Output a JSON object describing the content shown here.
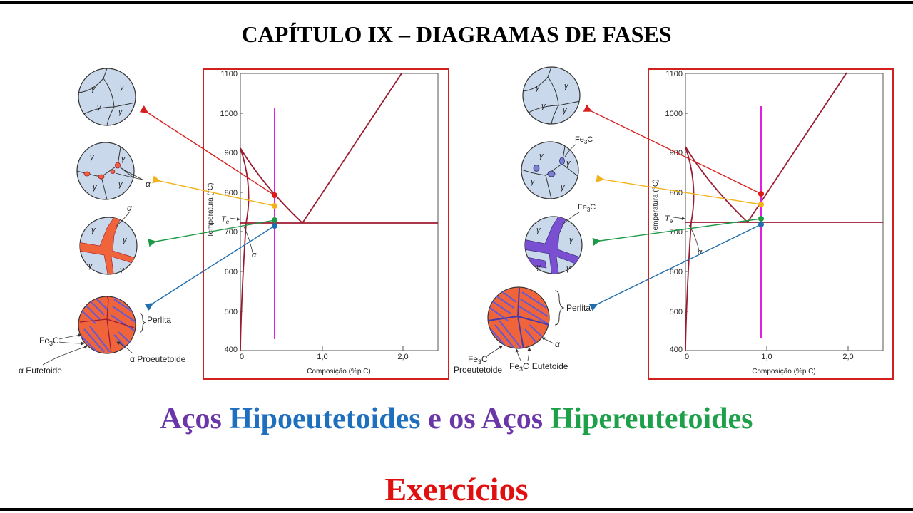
{
  "heading": "CAPÍTULO IX –  DIAGRAMAS DE FASES",
  "subtitle": {
    "parts": [
      {
        "text": "Aços ",
        "color": "#6a36a8"
      },
      {
        "text": "Hipoeutetoides",
        "color": "#1f6fbf"
      },
      {
        "text": " e os Aços ",
        "color": "#6a36a8"
      },
      {
        "text": "Hipereutetoides",
        "color": "#1ea04a"
      }
    ]
  },
  "exercise_title": "Exercícios",
  "colors": {
    "frame": "#d02020",
    "curve": "#9b1b30",
    "composition_line": "#e020e0",
    "red_arrow": "#d81e1e",
    "yellow_arrow": "#f2b21a",
    "green_arrow": "#1e9a46",
    "blue_arrow": "#1f6fb0",
    "grain_fill": "#c9d8ea",
    "ferrite": "#f0643c",
    "cementite": "#6a5acd"
  },
  "axes": {
    "y_ticks": [
      "1100",
      "1000",
      "900",
      "800",
      "700",
      "600",
      "500",
      "400"
    ],
    "x_ticks": [
      "0",
      "1,0",
      "2,0"
    ],
    "ylabel": "Temperatura (°C)",
    "xlabel": "Composição (%p C)",
    "te_label": "T",
    "te_sub": "e",
    "alpha_label": "α"
  },
  "left_panel": {
    "labels": {
      "gamma": "γ",
      "alpha": "α",
      "perlita": "Perlita",
      "fe3c_main": "Fe",
      "fe3c_sub": "3",
      "fe3c_end": "C",
      "eutetoide": "α Eutetoide",
      "proeutetoide": "α Proeutetoide"
    }
  },
  "right_panel": {
    "labels": {
      "gamma": "γ",
      "alpha": "α",
      "fe3c_main": "Fe",
      "fe3c_sub": "3",
      "fe3c_end": "C",
      "perlita": "Perlita",
      "proeutetoide": "Proeutetoide",
      "eutetoide": "Eutetoide"
    }
  }
}
